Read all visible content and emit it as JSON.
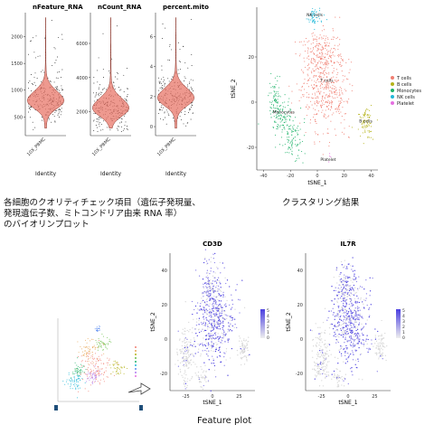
{
  "violin_panels": [
    {
      "title": "nFeature_RNA",
      "yticks": [
        500,
        1000,
        1500,
        2000
      ],
      "ylim": [
        150,
        2450
      ],
      "center": 800,
      "xtick": "10X_PBMC",
      "xlabel": "Identity"
    },
    {
      "title": "nCount_RNA",
      "yticks": [
        2000,
        4000,
        6000
      ],
      "ylim": [
        600,
        7800
      ],
      "center": 2200,
      "xtick": "10X_PBMC",
      "xlabel": "Identity"
    },
    {
      "title": "percent.mito",
      "yticks": [
        0,
        2,
        4,
        6
      ],
      "ylim": [
        -0.6,
        7.6
      ],
      "center": 1.9,
      "xtick": "10X_PBMC",
      "xlabel": "Identity"
    }
  ],
  "cluster_plot": {
    "xlabel": "tSNE_1",
    "ylabel": "tSNE_2",
    "xticks": [
      -40,
      -20,
      0,
      20,
      40
    ],
    "yticks": [
      -20,
      0,
      20
    ],
    "xlim": [
      -45,
      45
    ],
    "ylim": [
      -30,
      42
    ],
    "legend": [
      {
        "label": "T cells",
        "color": "#f07f72"
      },
      {
        "label": "B cells",
        "color": "#b5b31a"
      },
      {
        "label": "Monocytes",
        "color": "#1fb36a"
      },
      {
        "label": "NK cells",
        "color": "#22b8d8"
      },
      {
        "label": "Platelet",
        "color": "#e56fe0"
      }
    ],
    "cluster_labels": [
      {
        "text": "NK cells",
        "x": -2,
        "y": 38
      },
      {
        "text": "T cells",
        "x": 7,
        "y": 9
      },
      {
        "text": "Monocytes",
        "x": -25,
        "y": -5
      },
      {
        "text": "B cells",
        "x": 36,
        "y": -9
      },
      {
        "text": "Platelet",
        "x": 8,
        "y": -26
      }
    ]
  },
  "feature_plots": [
    {
      "title": "CD3D",
      "xlabel": "tSNE_1",
      "ylabel": "tSNE_2",
      "xticks": [
        -25,
        0,
        25
      ],
      "yticks": [
        -20,
        0,
        20,
        40
      ],
      "scale": [
        5,
        4,
        3,
        2,
        1,
        0
      ]
    },
    {
      "title": "IL7R",
      "xlabel": "tSNE_1",
      "ylabel": "tSNE_2",
      "xticks": [
        -25,
        0,
        25
      ],
      "yticks": [
        -20,
        0,
        20,
        40
      ],
      "scale": [
        5,
        4,
        3,
        2,
        1,
        0
      ]
    }
  ],
  "captions": {
    "violin_line1": "各細胞のクオリティチェック項目（遺伝子発現量、",
    "violin_line2": "発現遺伝子数、ミトコンドリア由来 RNA 率）",
    "violin_line3": "のバイオリンプロット",
    "cluster": "クラスタリング結果",
    "feature": "Feature plot"
  },
  "colors": {
    "violin_fill": "#e8776a",
    "violin_stroke": "#8a3a30",
    "feature_high": "#4a3fe0",
    "feature_low": "#d8d8d8"
  },
  "chart_data": [
    {
      "type": "violin",
      "title": "nFeature_RNA",
      "categories": [
        "10X_PBMC"
      ],
      "xlabel": "Identity",
      "median": 800,
      "ylim": [
        150,
        2450
      ]
    },
    {
      "type": "violin",
      "title": "nCount_RNA",
      "categories": [
        "10X_PBMC"
      ],
      "xlabel": "Identity",
      "median": 2200,
      "ylim": [
        600,
        7800
      ]
    },
    {
      "type": "violin",
      "title": "percent.mito",
      "categories": [
        "10X_PBMC"
      ],
      "xlabel": "Identity",
      "median": 1.9,
      "ylim": [
        -0.6,
        7.6
      ]
    },
    {
      "type": "scatter",
      "xlabel": "tSNE_1",
      "ylabel": "tSNE_2",
      "series": [
        {
          "name": "T cells",
          "x": 5,
          "y": 5
        },
        {
          "name": "B cells",
          "x": 36,
          "y": -9
        },
        {
          "name": "Monocytes",
          "x": -27,
          "y": -8
        },
        {
          "name": "NK cells",
          "x": -2,
          "y": 38
        },
        {
          "name": "Platelet",
          "x": 8,
          "y": -26
        }
      ]
    },
    {
      "type": "scatter",
      "title": "CD3D",
      "xlabel": "tSNE_1",
      "ylabel": "tSNE_2",
      "scale_max": 5
    },
    {
      "type": "scatter",
      "title": "IL7R",
      "xlabel": "tSNE_1",
      "ylabel": "tSNE_2",
      "scale_max": 5
    }
  ]
}
